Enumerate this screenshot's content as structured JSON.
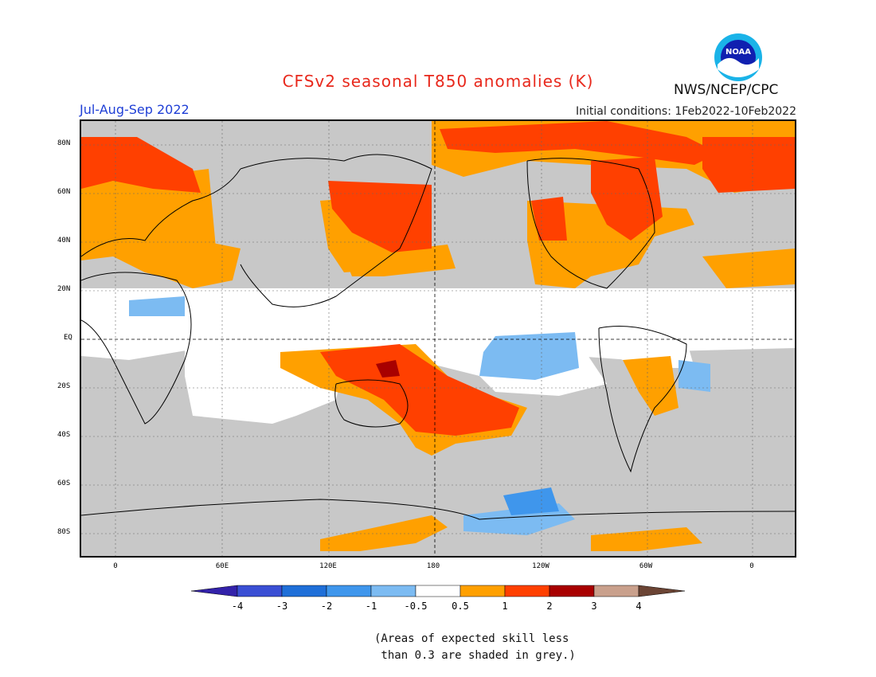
{
  "title": "CFSv2 seasonal T850 anomalies (K)",
  "season": "Jul-Aug-Sep 2022",
  "initial_conditions": "Initial conditions: 1Feb2022-10Feb2022",
  "agency": "NWS/NCEP/CPC",
  "logo_text": "NOAA",
  "lat_labels": [
    "80N",
    "60N",
    "40N",
    "20N",
    "EQ",
    "20S",
    "40S",
    "60S",
    "80S"
  ],
  "lon_labels": [
    "0",
    "60E",
    "120E",
    "180",
    "120W",
    "60W",
    "0"
  ],
  "colorbar": {
    "ticks": [
      "-4",
      "-3",
      "-2",
      "-1",
      "-0.5",
      "0.5",
      "1",
      "2",
      "3",
      "4"
    ],
    "colors": [
      "#3322aa",
      "#3a4fd4",
      "#1f6fd8",
      "#3f96ec",
      "#7cbbf2",
      "#ffffff",
      "#ffa000",
      "#ff4000",
      "#a80000",
      "#c9a08c",
      "#6b4434"
    ]
  },
  "skill_note": "(Areas of expected skill less\n than 0.3 are shaded in grey.)",
  "colors": {
    "skill_grey": "#c8c8c8",
    "warm_05": "#ffa000",
    "warm_1": "#ff4000",
    "warm_2": "#a80000",
    "cool_05": "#7cbbf2",
    "cool_1": "#3f96ec",
    "neutral": "#ffffff"
  }
}
